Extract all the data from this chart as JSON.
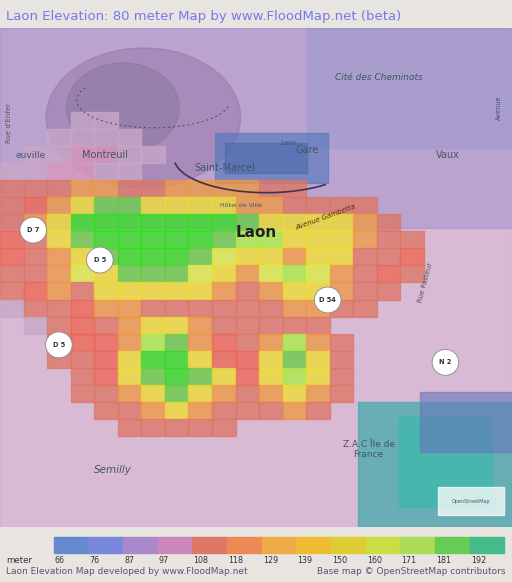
{
  "title": "Laon Elevation: 80 meter Map by www.FloodMap.net (beta)",
  "title_color": "#7777ee",
  "title_fontsize": 9.5,
  "bg_color": "#e8e4e0",
  "map_bg": "#c8b8d8",
  "colorbar_values": [
    66,
    76,
    87,
    97,
    108,
    118,
    129,
    139,
    150,
    160,
    171,
    181,
    192
  ],
  "colorbar_colors": [
    "#6688cc",
    "#7788dd",
    "#aa88cc",
    "#cc88bb",
    "#dd7766",
    "#ee8855",
    "#eeaa44",
    "#eebb33",
    "#ddcc33",
    "#ccdd44",
    "#aadd55",
    "#66cc55",
    "#44bb88"
  ],
  "legend_label1": "Laon Elevation Map developed by www.FloodMap.net",
  "legend_label2": "Base map © OpenStreetMap contributors",
  "footer_fontsize": 6.5,
  "elev_colors": {
    "0": "#c8b8d8",
    "1": "#cc88bb",
    "2": "#dd7766",
    "3": "#ee9944",
    "4": "#eedd33",
    "5": "#ccee44",
    "6": "#66cc44",
    "7": "#33dd22",
    "8": "#44bbaa",
    "9": "#6688cc",
    "10": "#8866bb"
  }
}
